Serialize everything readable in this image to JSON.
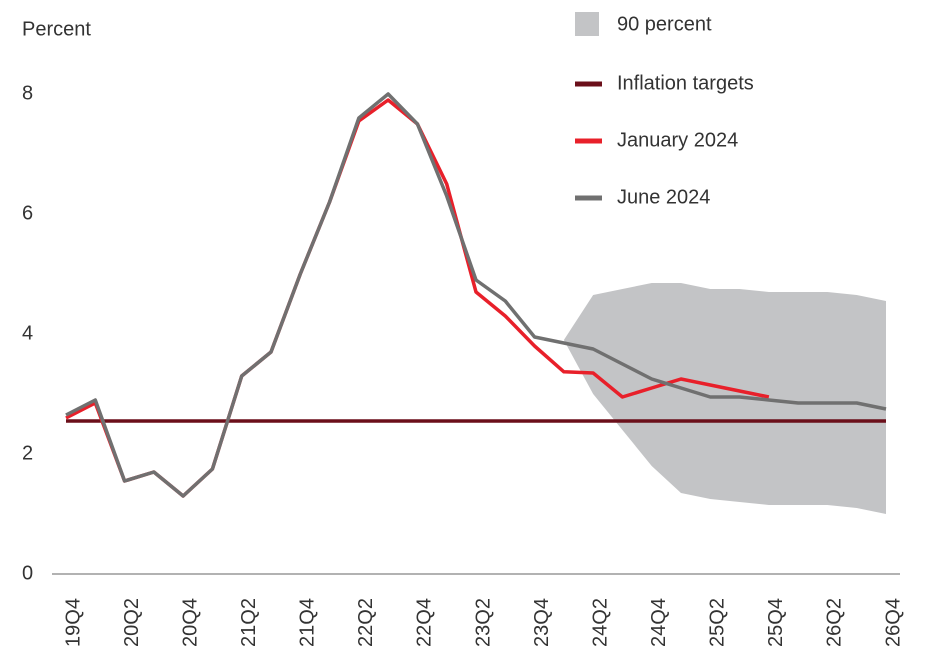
{
  "chart_data": {
    "type": "line",
    "y_label": "Percent",
    "categories": [
      "19Q4",
      null,
      "20Q2",
      null,
      "20Q4",
      null,
      "21Q2",
      null,
      "21Q4",
      null,
      "22Q2",
      null,
      "22Q4",
      null,
      "23Q2",
      null,
      "23Q4",
      null,
      "24Q2",
      null,
      "24Q4",
      null,
      "25Q2",
      null,
      "25Q4",
      null,
      "26Q2",
      null,
      "26Q4"
    ],
    "band": {
      "name": "90 percent",
      "color": "#c3c4c6",
      "upper": [
        null,
        null,
        null,
        null,
        null,
        null,
        null,
        null,
        null,
        null,
        null,
        null,
        null,
        null,
        null,
        null,
        null,
        3.9,
        4.65,
        4.75,
        4.85,
        4.85,
        4.75,
        4.75,
        4.7,
        4.7,
        4.7,
        4.65,
        4.55
      ],
      "lower": [
        null,
        null,
        null,
        null,
        null,
        null,
        null,
        null,
        null,
        null,
        null,
        null,
        null,
        null,
        null,
        null,
        null,
        3.9,
        3.0,
        2.4,
        1.8,
        1.35,
        1.25,
        1.2,
        1.15,
        1.15,
        1.15,
        1.1,
        1.0
      ]
    },
    "series": [
      {
        "name": "Inflation targets",
        "color": "#6b0f1a",
        "values": [
          2.55,
          2.55,
          2.55,
          2.55,
          2.55,
          2.55,
          2.55,
          2.55,
          2.55,
          2.55,
          2.55,
          2.55,
          2.55,
          2.55,
          2.55,
          2.55,
          2.55,
          2.55,
          2.55,
          2.55,
          2.55,
          2.55,
          2.55,
          2.55,
          2.55,
          2.55,
          2.55,
          2.55,
          2.55
        ]
      },
      {
        "name": "January 2024",
        "color": "#e8202a",
        "values": [
          2.6,
          2.85,
          1.55,
          1.7,
          1.3,
          1.75,
          3.3,
          3.7,
          5.0,
          6.2,
          7.55,
          7.9,
          7.5,
          6.5,
          4.7,
          4.3,
          3.8,
          3.37,
          3.35,
          2.95,
          3.1,
          3.25,
          3.15,
          3.05,
          2.95,
          null,
          null,
          null,
          null
        ]
      },
      {
        "name": "June 2024",
        "color": "#707070",
        "values": [
          2.65,
          2.9,
          1.55,
          1.7,
          1.3,
          1.75,
          3.3,
          3.7,
          5.0,
          6.2,
          7.6,
          8.0,
          7.5,
          6.3,
          4.9,
          4.55,
          3.95,
          3.85,
          3.75,
          3.5,
          3.25,
          3.1,
          2.95,
          2.95,
          2.9,
          2.85,
          2.85,
          2.85,
          2.75
        ]
      }
    ],
    "ylim": [
      0,
      8
    ],
    "yticks": [
      0,
      2,
      4,
      6,
      8
    ]
  }
}
